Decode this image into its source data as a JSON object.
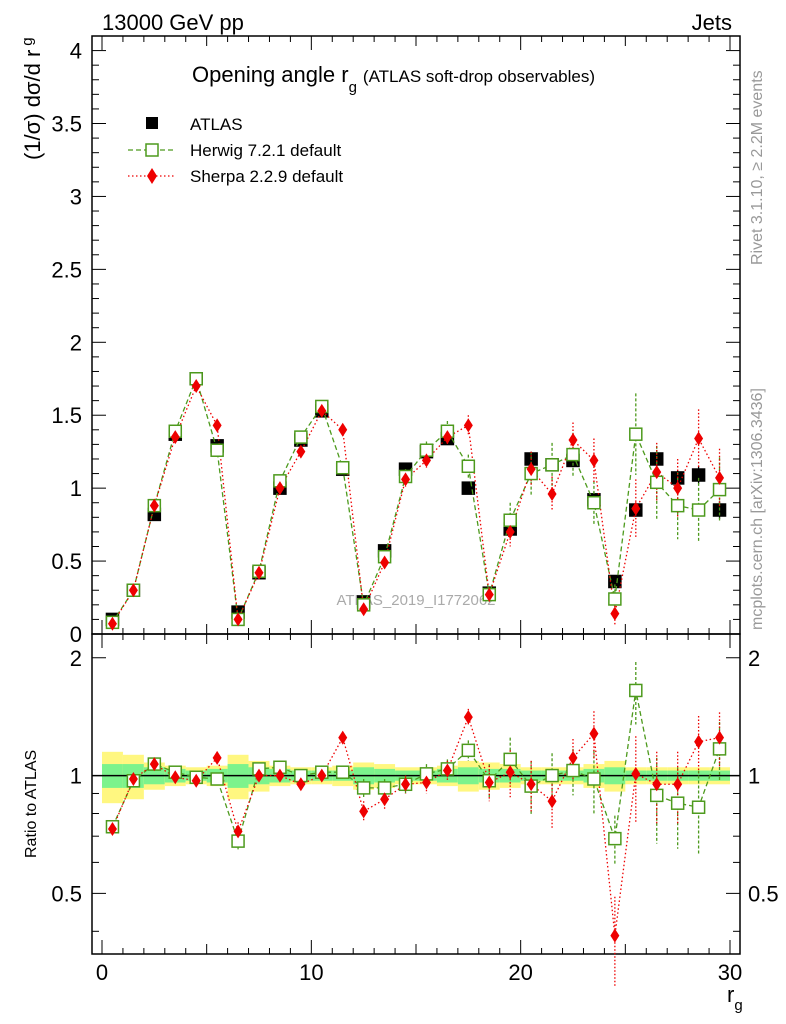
{
  "header": {
    "left": "13000 GeV pp",
    "right": "Jets"
  },
  "title_main": "Opening angle r",
  "title_sub": "g",
  "title_tail": "(ATLAS soft-drop observables)",
  "watermark": "ATLAS_2019_I1772062",
  "side_text": {
    "rivet": "Rivet 3.1.10, ≥ 2.2M events",
    "mcplots": "mcplots.cern.ch [arXiv:1306.3436]"
  },
  "colors": {
    "atlas": "#000000",
    "herwig": "#4d9a1d",
    "sherpa": "#ee0000",
    "band_green": "#7cf38c",
    "band_yellow": "#fff780"
  },
  "chart_data": [
    {
      "type": "scatter",
      "panel": "main",
      "ylabel": "(1/σ) dσ/d r",
      "ylabel_sub": "g",
      "ylim": [
        0,
        4.1
      ],
      "yticks": [
        0,
        0.5,
        1,
        1.5,
        2,
        2.5,
        3,
        3.5,
        4
      ],
      "ytick_labels": [
        "0",
        "0.5",
        "1",
        "1.5",
        "2",
        "2.5",
        "3",
        "3.5",
        "4"
      ],
      "legend_position": "top-left",
      "x": [
        0.5,
        1.5,
        2.5,
        3.5,
        4.5,
        5.5,
        6.5,
        7.5,
        8.5,
        9.5,
        10.5,
        11.5,
        12.5,
        13.5,
        14.5,
        15.5,
        16.5,
        17.5,
        18.5,
        19.5,
        20.5,
        21.5,
        22.5,
        23.5,
        24.5,
        25.5,
        26.5,
        27.5,
        28.5,
        29.5
      ],
      "series": [
        {
          "name": "ATLAS",
          "marker": "filled-square",
          "values": [
            0.1,
            0.3,
            0.82,
            1.37,
            1.75,
            1.29,
            0.15,
            0.42,
            1.0,
            1.33,
            1.53,
            1.13,
            0.22,
            0.57,
            1.13,
            1.25,
            1.34,
            1.0,
            0.28,
            0.72,
            1.2,
            1.16,
            1.19,
            0.92,
            0.36,
            0.85,
            1.2,
            1.07,
            1.09,
            0.85
          ],
          "errors": [
            0.01,
            0.01,
            0.02,
            0.03,
            0.03,
            0.03,
            0.01,
            0.02,
            0.02,
            0.03,
            0.03,
            0.03,
            0.01,
            0.02,
            0.03,
            0.03,
            0.04,
            0.04,
            0.01,
            0.03,
            0.03,
            0.03,
            0.04,
            0.05,
            0.02,
            0.04,
            0.06,
            0.05,
            0.06,
            0.06
          ]
        },
        {
          "name": "Herwig 7.2.1 default",
          "marker": "open-square",
          "line": "dashed",
          "values": [
            0.08,
            0.3,
            0.88,
            1.39,
            1.75,
            1.26,
            0.1,
            0.43,
            1.05,
            1.35,
            1.56,
            1.14,
            0.2,
            0.53,
            1.08,
            1.26,
            1.39,
            1.15,
            0.27,
            0.78,
            1.1,
            1.16,
            1.23,
            0.9,
            0.24,
            1.37,
            1.04,
            0.88,
            0.85,
            0.99
          ],
          "errors": [
            0.01,
            0.02,
            0.03,
            0.03,
            0.03,
            0.03,
            0.02,
            0.02,
            0.03,
            0.03,
            0.03,
            0.04,
            0.04,
            0.04,
            0.05,
            0.06,
            0.07,
            0.08,
            0.05,
            0.12,
            0.15,
            0.15,
            0.15,
            0.15,
            0.1,
            0.28,
            0.25,
            0.23,
            0.22,
            0.22
          ]
        },
        {
          "name": "Sherpa 2.2.9 default",
          "marker": "filled-diamond",
          "line": "dotted",
          "values": [
            0.07,
            0.3,
            0.88,
            1.35,
            1.7,
            1.43,
            0.1,
            0.42,
            1.0,
            1.25,
            1.53,
            1.4,
            0.17,
            0.49,
            1.06,
            1.19,
            1.35,
            1.43,
            0.27,
            0.7,
            1.13,
            0.96,
            1.33,
            1.19,
            0.14,
            0.86,
            1.11,
            1.0,
            1.34,
            1.07
          ],
          "errors": [
            0.01,
            0.02,
            0.03,
            0.03,
            0.03,
            0.03,
            0.02,
            0.02,
            0.03,
            0.03,
            0.03,
            0.04,
            0.04,
            0.04,
            0.05,
            0.05,
            0.06,
            0.07,
            0.05,
            0.1,
            0.12,
            0.12,
            0.12,
            0.15,
            0.08,
            0.2,
            0.2,
            0.2,
            0.2,
            0.2
          ]
        }
      ]
    },
    {
      "type": "scatter",
      "panel": "ratio",
      "ylabel": "Ratio to ATLAS",
      "xlabel": "r",
      "xlabel_sub": "g",
      "xlim": [
        0,
        30
      ],
      "xticks": [
        0,
        10,
        20,
        30
      ],
      "xtick_labels": [
        "0",
        "10",
        "20",
        "30"
      ],
      "ylim": [
        0.35,
        2.3
      ],
      "yticks": [
        0.5,
        1,
        2
      ],
      "ytick_labels": [
        "0.5",
        "1",
        "2"
      ],
      "x": [
        0.5,
        1.5,
        2.5,
        3.5,
        4.5,
        5.5,
        6.5,
        7.5,
        8.5,
        9.5,
        10.5,
        11.5,
        12.5,
        13.5,
        14.5,
        15.5,
        16.5,
        17.5,
        18.5,
        19.5,
        20.5,
        21.5,
        22.5,
        23.5,
        24.5,
        25.5,
        26.5,
        27.5,
        28.5,
        29.5
      ],
      "band_inner": [
        0.07,
        0.07,
        0.05,
        0.04,
        0.03,
        0.04,
        0.07,
        0.05,
        0.04,
        0.03,
        0.03,
        0.03,
        0.05,
        0.04,
        0.03,
        0.03,
        0.04,
        0.05,
        0.04,
        0.04,
        0.03,
        0.03,
        0.03,
        0.04,
        0.05,
        0.03,
        0.03,
        0.03,
        0.03,
        0.03
      ],
      "band_outer": [
        0.15,
        0.13,
        0.08,
        0.06,
        0.05,
        0.06,
        0.13,
        0.09,
        0.06,
        0.05,
        0.05,
        0.06,
        0.08,
        0.07,
        0.05,
        0.05,
        0.06,
        0.09,
        0.08,
        0.07,
        0.05,
        0.05,
        0.05,
        0.07,
        0.09,
        0.05,
        0.05,
        0.05,
        0.05,
        0.05
      ],
      "series": [
        {
          "name": "Herwig 7.2.1 default",
          "values": [
            0.74,
            0.97,
            1.07,
            1.02,
            0.99,
            0.98,
            0.68,
            1.04,
            1.05,
            1.0,
            1.02,
            1.02,
            0.93,
            0.93,
            0.95,
            1.01,
            1.04,
            1.16,
            0.97,
            1.1,
            0.94,
            1.0,
            1.03,
            0.98,
            0.69,
            1.65,
            0.89,
            0.85,
            0.83,
            1.17
          ],
          "errors": [
            0.02,
            0.03,
            0.03,
            0.02,
            0.02,
            0.03,
            0.04,
            0.03,
            0.03,
            0.03,
            0.03,
            0.04,
            0.05,
            0.05,
            0.05,
            0.06,
            0.06,
            0.07,
            0.1,
            0.15,
            0.15,
            0.14,
            0.14,
            0.18,
            0.1,
            0.3,
            0.22,
            0.2,
            0.2,
            0.2
          ]
        },
        {
          "name": "Sherpa 2.2.9 default",
          "values": [
            0.73,
            0.98,
            1.07,
            0.99,
            0.97,
            1.11,
            0.72,
            1.0,
            1.0,
            0.95,
            1.0,
            1.25,
            0.81,
            0.87,
            0.95,
            0.96,
            1.03,
            1.41,
            0.96,
            1.02,
            0.95,
            0.86,
            1.11,
            1.28,
            0.39,
            1.01,
            0.95,
            0.95,
            1.22,
            1.25
          ],
          "errors": [
            0.02,
            0.03,
            0.03,
            0.02,
            0.02,
            0.03,
            0.04,
            0.03,
            0.03,
            0.03,
            0.03,
            0.04,
            0.05,
            0.05,
            0.05,
            0.06,
            0.06,
            0.07,
            0.1,
            0.14,
            0.14,
            0.13,
            0.13,
            0.18,
            0.1,
            0.25,
            0.2,
            0.2,
            0.2,
            0.2
          ]
        }
      ]
    }
  ]
}
